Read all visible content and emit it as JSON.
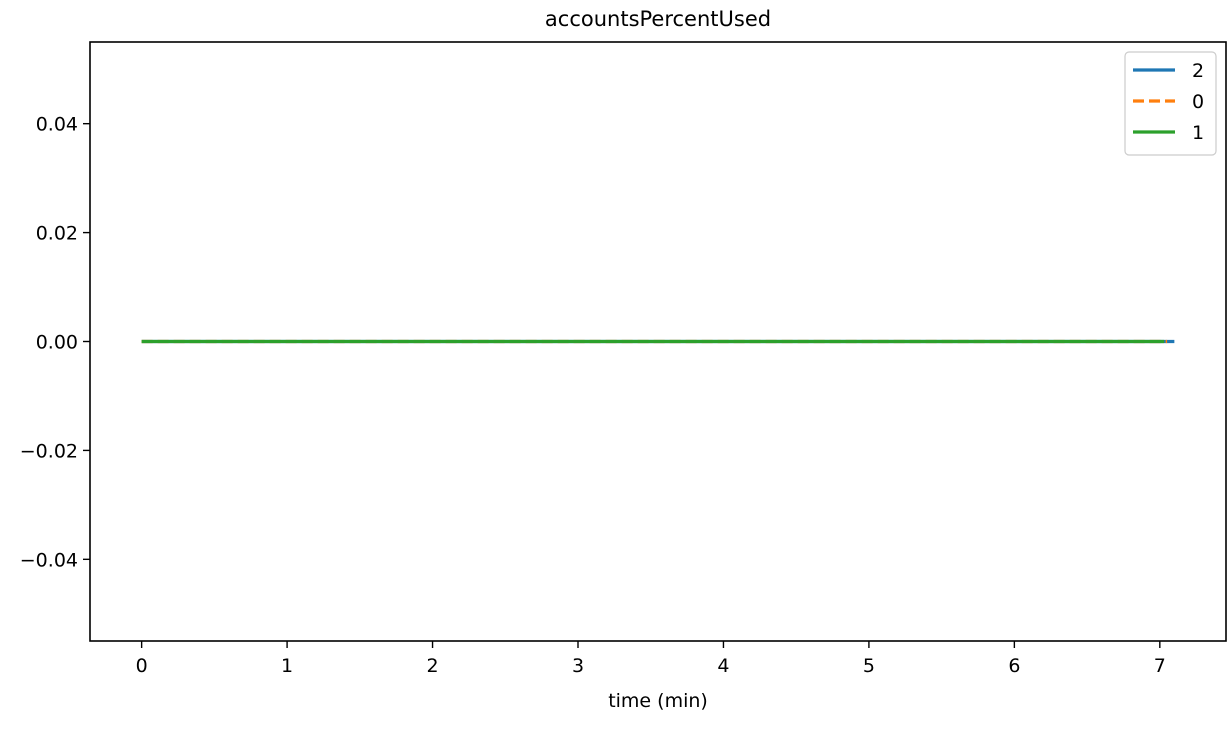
{
  "chart_data": {
    "type": "line",
    "title": "accountsPercentUsed",
    "xlabel": "time (min)",
    "ylabel": "",
    "xlim": [
      -0.355,
      7.455
    ],
    "ylim": [
      -0.055,
      0.055
    ],
    "xticks": [
      0,
      1,
      2,
      3,
      4,
      5,
      6,
      7
    ],
    "xtick_labels": [
      "0",
      "1",
      "2",
      "3",
      "4",
      "5",
      "6",
      "7"
    ],
    "yticks": [
      -0.04,
      -0.02,
      0.0,
      0.02,
      0.04
    ],
    "ytick_labels": [
      "−0.04",
      "−0.02",
      "0.00",
      "0.02",
      "0.04"
    ],
    "grid": false,
    "legend_position": "top-right",
    "series": [
      {
        "name": "2",
        "color": "#1f77b4",
        "dash": "solid",
        "x": [
          0,
          7.1
        ],
        "y": [
          0,
          0
        ]
      },
      {
        "name": "0",
        "color": "#ff7f0e",
        "dash": "dashed",
        "x": [
          0,
          7.05
        ],
        "y": [
          0,
          0
        ]
      },
      {
        "name": "1",
        "color": "#2ca02c",
        "dash": "solid",
        "x": [
          0,
          7.03
        ],
        "y": [
          0,
          0
        ]
      }
    ]
  }
}
